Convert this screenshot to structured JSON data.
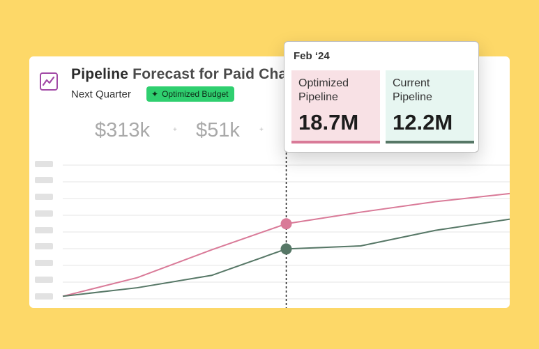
{
  "card": {
    "title_bold": "Pipeline",
    "title_rest": "Forecast for Paid Cha",
    "subtitle": "Next Quarter",
    "badge_label": "Optimized Budget",
    "badge_icon": "magic-wand-icon",
    "icon": "line-chart-icon",
    "stats": [
      "$313k",
      "$51k"
    ],
    "plus_sign": "+"
  },
  "tooltip": {
    "date": "Feb ‘24",
    "optimized": {
      "label_line1": "Optimized",
      "label_line2": "Pipeline",
      "value": "18.7M",
      "color": "#d97a98"
    },
    "current": {
      "label_line1": "Current",
      "label_line2": "Pipeline",
      "value": "12.2M",
      "color": "#567766"
    }
  },
  "colors": {
    "background": "#fdd868",
    "optimized": "#d97a98",
    "current": "#567766",
    "badge": "#2fcf6f",
    "icon": "#a24aa6"
  },
  "chart_data": {
    "type": "line",
    "x": [
      0,
      1,
      2,
      3,
      4,
      5,
      6
    ],
    "series": [
      {
        "values": [
          0,
          4.8,
          12.0,
          18.7,
          21.7,
          24.4,
          26.5
        ]
      },
      {
        "values": [
          0,
          2.2,
          5.4,
          12.2,
          13.0,
          17.0,
          19.9
        ]
      }
    ],
    "highlight_index": 3,
    "ylim": [
      -3,
      36
    ],
    "grid": true
  }
}
